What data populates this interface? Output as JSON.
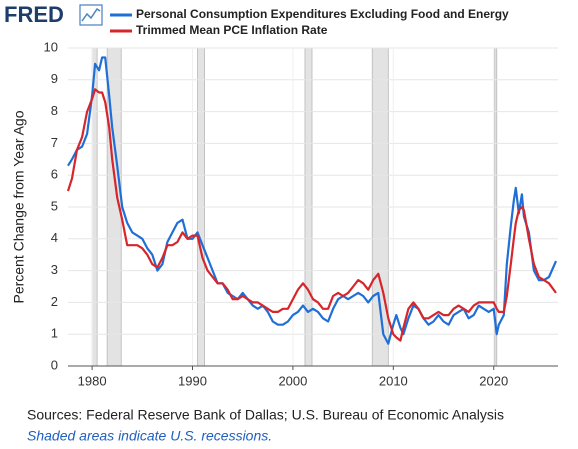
{
  "logo": "FRED",
  "chart_data": {
    "type": "line",
    "ylabel": "Percent Change from Year Ago",
    "source": "Sources: Federal Reserve Bank of Dallas; U.S. Bureau of Economic Analysis",
    "note": "Shaded areas indicate U.S. recessions.",
    "xlim": [
      1977.6,
      2026.4
    ],
    "xticks": [
      1980,
      1990,
      2000,
      2010,
      2020
    ],
    "ylim": [
      0,
      10
    ],
    "yticks": [
      0,
      1,
      2,
      3,
      4,
      5,
      6,
      7,
      8,
      9,
      10
    ],
    "grid": true,
    "recessions": [
      [
        1980.0,
        1980.5
      ],
      [
        1981.5,
        1982.9
      ],
      [
        1990.5,
        1991.2
      ],
      [
        2001.2,
        2001.9
      ],
      [
        2007.9,
        2009.5
      ],
      [
        2020.1,
        2020.3
      ]
    ],
    "x": [
      1977.6,
      1978,
      1978.5,
      1979,
      1979.5,
      1980,
      1980.3,
      1980.7,
      1981,
      1981.3,
      1981.7,
      1982,
      1982.5,
      1983,
      1983.5,
      1984,
      1984.5,
      1985,
      1985.5,
      1986,
      1986.5,
      1987,
      1987.5,
      1988,
      1988.5,
      1989,
      1989.5,
      1990,
      1990.5,
      1991,
      1991.5,
      1992,
      1992.5,
      1993,
      1993.5,
      1994,
      1994.5,
      1995,
      1995.5,
      1996,
      1996.5,
      1997,
      1997.5,
      1998,
      1998.5,
      1999,
      1999.5,
      2000,
      2000.5,
      2001,
      2001.5,
      2002,
      2002.5,
      2003,
      2003.5,
      2004,
      2004.5,
      2005,
      2005.5,
      2006,
      2006.5,
      2007,
      2007.5,
      2008,
      2008.5,
      2009,
      2009.5,
      2010,
      2010.3,
      2010.7,
      2011,
      2011.5,
      2012,
      2012.5,
      2013,
      2013.5,
      2014,
      2014.5,
      2015,
      2015.5,
      2016,
      2016.5,
      2017,
      2017.5,
      2018,
      2018.5,
      2019,
      2019.5,
      2020,
      2020.3,
      2020.5,
      2021,
      2021.3,
      2021.7,
      2022,
      2022.2,
      2022.5,
      2022.8,
      2023,
      2023.5,
      2024,
      2024.5,
      2025,
      2025.5,
      2026.2
    ],
    "series": [
      {
        "name": "Personal Consumption Expenditures Excluding Food and Energy",
        "color": "#1f6fd6",
        "values": [
          6.3,
          6.5,
          6.8,
          6.9,
          7.3,
          8.5,
          9.5,
          9.3,
          9.7,
          9.7,
          8.5,
          7.5,
          6.3,
          5.0,
          4.5,
          4.2,
          4.1,
          4.0,
          3.7,
          3.5,
          3.0,
          3.2,
          3.9,
          4.2,
          4.5,
          4.6,
          4.0,
          4.0,
          4.2,
          3.8,
          3.4,
          3.0,
          2.6,
          2.6,
          2.3,
          2.2,
          2.1,
          2.3,
          2.1,
          1.9,
          1.8,
          1.9,
          1.7,
          1.4,
          1.3,
          1.3,
          1.4,
          1.6,
          1.7,
          1.9,
          1.7,
          1.8,
          1.7,
          1.5,
          1.4,
          1.8,
          2.1,
          2.2,
          2.1,
          2.2,
          2.3,
          2.2,
          2.0,
          2.2,
          2.3,
          1.0,
          0.7,
          1.3,
          1.6,
          1.2,
          1.0,
          1.5,
          1.9,
          1.8,
          1.5,
          1.3,
          1.4,
          1.6,
          1.4,
          1.3,
          1.6,
          1.7,
          1.8,
          1.5,
          1.6,
          1.9,
          1.8,
          1.7,
          1.8,
          1.0,
          1.3,
          1.6,
          3.2,
          4.4,
          5.2,
          5.6,
          4.8,
          5.4,
          4.7,
          4.2,
          3.0,
          2.7,
          2.7,
          2.8,
          3.3
        ]
      },
      {
        "name": "Trimmed Mean PCE Inflation Rate",
        "color": "#d7262b",
        "values": [
          5.5,
          5.9,
          6.8,
          7.2,
          8.0,
          8.4,
          8.7,
          8.6,
          8.6,
          8.3,
          7.5,
          6.5,
          5.3,
          4.6,
          3.8,
          3.8,
          3.8,
          3.7,
          3.5,
          3.2,
          3.1,
          3.4,
          3.8,
          3.8,
          3.9,
          4.2,
          4.0,
          4.1,
          4.1,
          3.4,
          3.0,
          2.8,
          2.6,
          2.6,
          2.4,
          2.1,
          2.1,
          2.2,
          2.1,
          2.0,
          2.0,
          1.9,
          1.8,
          1.7,
          1.7,
          1.8,
          1.8,
          2.1,
          2.4,
          2.6,
          2.4,
          2.1,
          2.0,
          1.8,
          1.8,
          2.2,
          2.3,
          2.2,
          2.3,
          2.5,
          2.7,
          2.6,
          2.4,
          2.7,
          2.9,
          2.3,
          1.5,
          1.0,
          0.9,
          0.8,
          1.2,
          1.8,
          2.0,
          1.8,
          1.5,
          1.5,
          1.6,
          1.7,
          1.6,
          1.6,
          1.8,
          1.9,
          1.8,
          1.7,
          1.9,
          2.0,
          2.0,
          2.0,
          2.0,
          1.8,
          1.7,
          1.7,
          2.2,
          3.2,
          4.0,
          4.5,
          4.9,
          5.0,
          4.9,
          4.0,
          3.2,
          2.8,
          2.7,
          2.6,
          2.3
        ]
      }
    ]
  }
}
